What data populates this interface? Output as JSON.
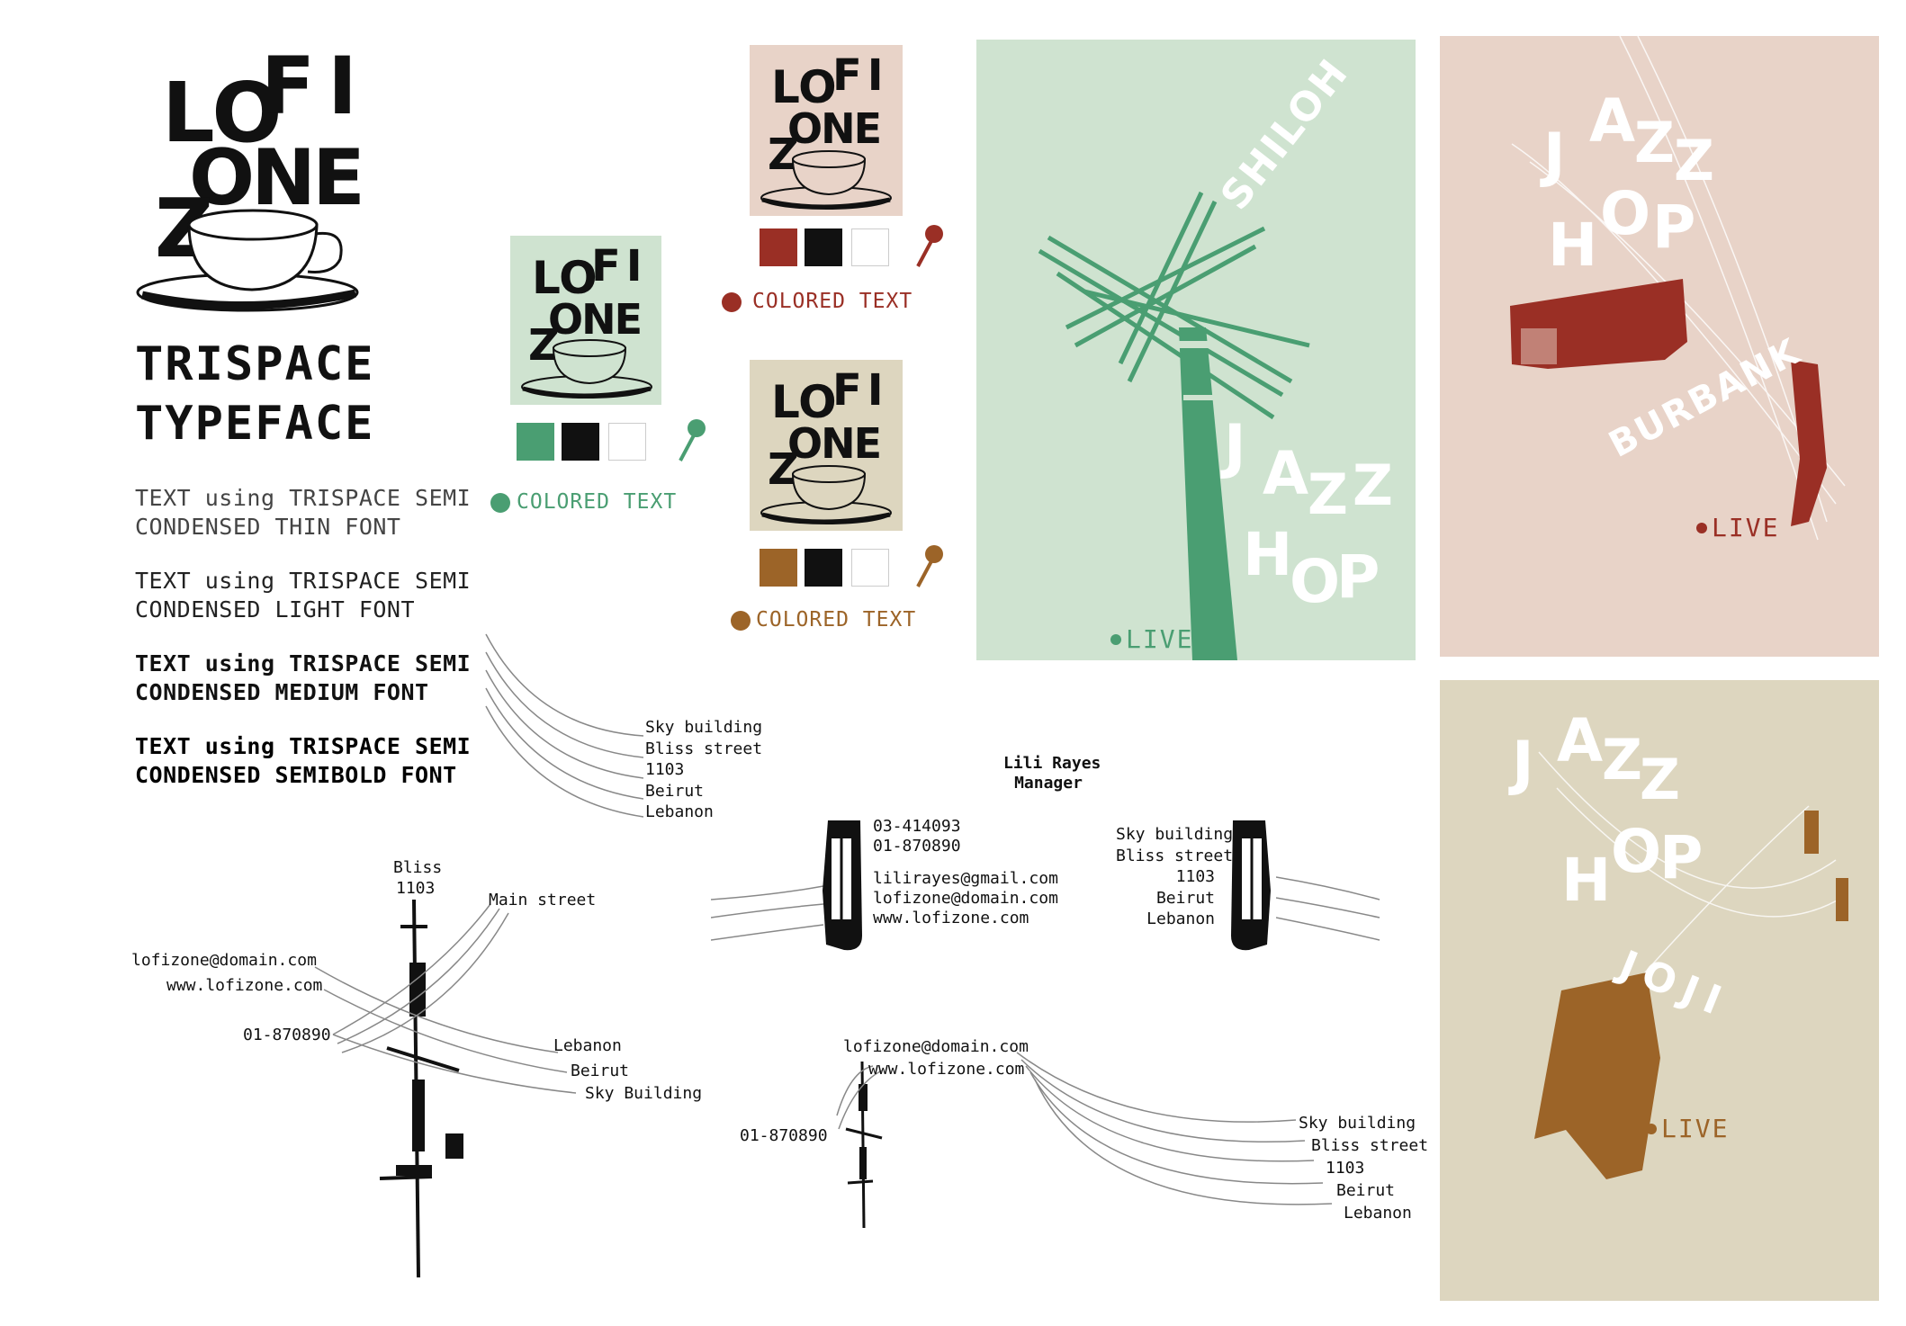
{
  "colors": {
    "green": "#4a9e72",
    "green_bg": "#cfe3d0",
    "red": "#9a2f25",
    "pink_bg": "#e8d3c8",
    "brown": "#9c6428",
    "beige_bg": "#ddd6bf",
    "black": "#111111",
    "white": "#ffffff"
  },
  "logo": {
    "l1": "LO",
    "l2": "FI",
    "l3": "ONE",
    "l4": "Z"
  },
  "typeface": {
    "title_line1": "TRISPACE",
    "title_line2": "TYPEFACE"
  },
  "specimens": [
    {
      "line1": "TEXT using TRISPACE SEMI",
      "line2": "CONDENSED THIN FONT"
    },
    {
      "line1": "TEXT using TRISPACE SEMI",
      "line2": "CONDENSED LIGHT FONT"
    },
    {
      "line1": "TEXT using TRISPACE SEMI",
      "line2": "CONDENSED MEDIUM FONT"
    },
    {
      "line1": "TEXT using TRISPACE SEMI",
      "line2": "CONDENSED SEMIBOLD FONT"
    }
  ],
  "colored_text_label": "COLORED TEXT",
  "poster_green": {
    "shiloh": "SHILOH",
    "j": "J",
    "a": "A",
    "z1": "Z",
    "z2": "Z",
    "h": "H",
    "o": "O",
    "p": "P",
    "live": "LIVE"
  },
  "poster_pink": {
    "j": "J",
    "a": "A",
    "z1": "Z",
    "z2": "Z",
    "h": "H",
    "o": "O",
    "p": "P",
    "burbank": "BURBANK",
    "live": "LIVE"
  },
  "poster_beige": {
    "j": "J",
    "a": "A",
    "z1": "Z",
    "z2": "Z",
    "h": "H",
    "o": "O",
    "p": "P",
    "joji": "JOJI",
    "live": "LIVE"
  },
  "address_block": [
    "Sky building",
    "Bliss street",
    "1103",
    "Beirut",
    "Lebanon"
  ],
  "card_front": {
    "name": "Lili Rayes",
    "role": "Manager",
    "phone1": "03-414093",
    "phone2": "01-870890",
    "email": "lilirayes@gmail.com",
    "email2": "lofizone@domain.com",
    "web": "www.lofizone.com"
  },
  "card_back_address": [
    "Sky building",
    "Bliss street",
    "1103",
    "Beirut",
    "Lebanon"
  ],
  "pole_left": {
    "bliss": "Bliss",
    "num": "1103",
    "main_street": "Main street",
    "email": "lofizone@domain.com",
    "web": "www.lofizone.com",
    "phone": "01-870890",
    "lebanon": "Lebanon",
    "beirut": "Beirut",
    "sky": "Sky Building"
  },
  "pole_bottom": {
    "email": "lofizone@domain.com",
    "web": "www.lofizone.com",
    "phone": "01-870890",
    "address": [
      "Sky building",
      "Bliss street",
      "1103",
      "Beirut",
      "Lebanon"
    ]
  }
}
